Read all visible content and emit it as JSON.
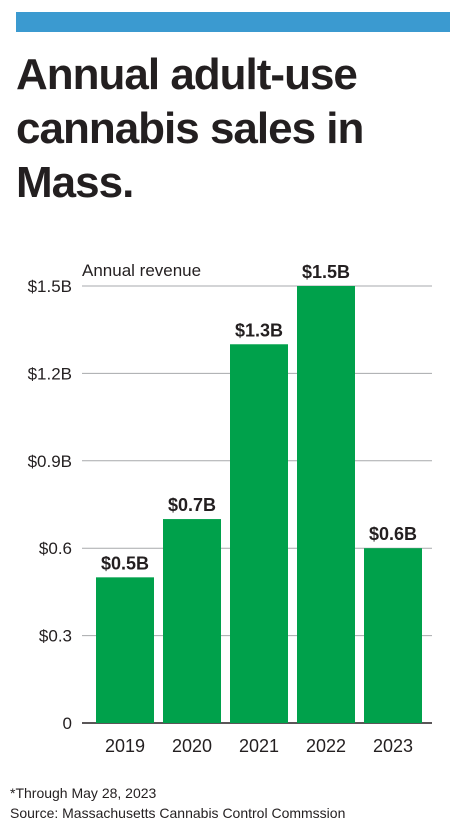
{
  "colors": {
    "accent_bar": "#3b9ad0",
    "bar_fill": "#00a14b",
    "text": "#231f20",
    "grid": "#a7a9ac"
  },
  "header": {
    "title": "Annual adult-use cannabis sales in Mass."
  },
  "chart_data": {
    "type": "bar",
    "title": "Annual adult-use cannabis sales in Mass.",
    "ylabel": "Annual revenue",
    "xlabel": "",
    "categories": [
      "2019",
      "2020",
      "2021",
      "2022",
      "2023"
    ],
    "values": [
      0.5,
      0.7,
      1.3,
      1.5,
      0.6
    ],
    "value_labels": [
      "$0.5B",
      "$0.7B",
      "$1.3B",
      "$1.5B",
      "$0.6B"
    ],
    "ylim": [
      0,
      1.5
    ],
    "yticks": [
      0,
      0.3,
      0.6,
      0.9,
      1.2,
      1.5
    ],
    "ytick_labels": [
      "0",
      "$0.3",
      "$0.6",
      "$0.9B",
      "$1.2B",
      "$1.5B"
    ],
    "grid": true,
    "legend": "none"
  },
  "footer": {
    "footnote": "*Through May 28, 2023",
    "source": "Source: Massachusetts Cannabis Control Commssion"
  }
}
